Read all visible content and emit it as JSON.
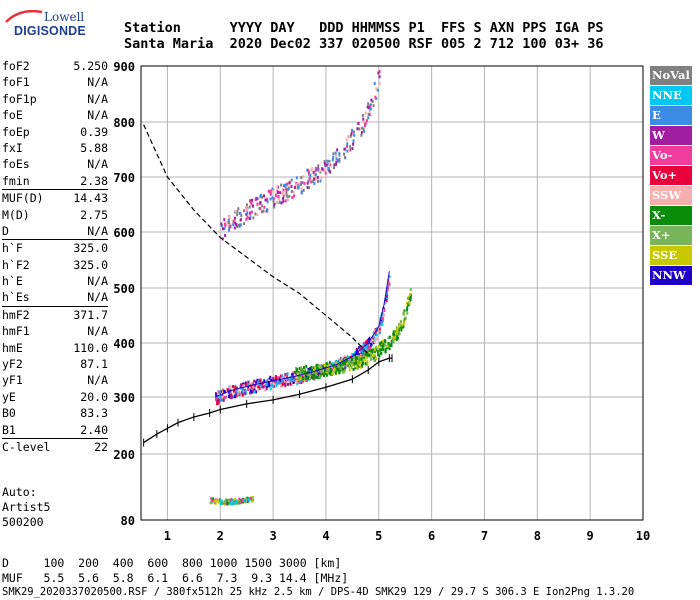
{
  "logo": {
    "line1": "Lowell",
    "line2": "DIGISONDE"
  },
  "header": {
    "labels": "Station      YYYY DAY   DDD HHMMSS P1  FFS S AXN PPS IGA PS",
    "values": "Santa Maria  2020 Dec02 337 020500 RSF 005 2 712 100 03+ 36"
  },
  "params": [
    {
      "name": "foF2",
      "value": "5.250"
    },
    {
      "name": "foF1",
      "value": "N/A"
    },
    {
      "name": "foF1p",
      "value": "N/A"
    },
    {
      "name": "foE",
      "value": "N/A"
    },
    {
      "name": "foEp",
      "value": "0.39"
    },
    {
      "name": "fxI",
      "value": "5.88"
    },
    {
      "name": "foEs",
      "value": "N/A"
    },
    {
      "name": "fmin",
      "value": "2.38"
    },
    {
      "name": "MUF(D)",
      "value": "14.43",
      "sep": true
    },
    {
      "name": "M(D)",
      "value": "2.75"
    },
    {
      "name": "D",
      "value": "N/A"
    },
    {
      "name": "h`F",
      "value": "325.0",
      "sep": true
    },
    {
      "name": "h`F2",
      "value": "325.0"
    },
    {
      "name": "h`E",
      "value": "N/A"
    },
    {
      "name": "h`Es",
      "value": "N/A"
    },
    {
      "name": "hmF2",
      "value": "371.7",
      "sep": true
    },
    {
      "name": "hmF1",
      "value": "N/A"
    },
    {
      "name": "hmE",
      "value": "110.0"
    },
    {
      "name": "yF2",
      "value": "87.1"
    },
    {
      "name": "yF1",
      "value": "N/A"
    },
    {
      "name": "yE",
      "value": "20.0"
    },
    {
      "name": "B0",
      "value": "83.3"
    },
    {
      "name": "B1",
      "value": "2.40"
    },
    {
      "name": "C-level",
      "value": "22",
      "sep": true
    }
  ],
  "auto": {
    "line1": "Auto:",
    "line2": "Artist5",
    "line3": "500200"
  },
  "legend": [
    {
      "label": "NoVal",
      "color": "#808080"
    },
    {
      "label": "NNE",
      "color": "#00c8f0"
    },
    {
      "label": "E",
      "color": "#3c8ce6"
    },
    {
      "label": "W",
      "color": "#a01ea0"
    },
    {
      "label": "Vo-",
      "color": "#f03c9b"
    },
    {
      "label": "Vo+",
      "color": "#e6003c"
    },
    {
      "label": "SSW",
      "color": "#f5afaf"
    },
    {
      "label": "X-",
      "color": "#0a8c0a"
    },
    {
      "label": "X+",
      "color": "#78b45a"
    },
    {
      "label": "SSE",
      "color": "#c8c800"
    },
    {
      "label": "NNW",
      "color": "#1e00c8"
    }
  ],
  "footer": {
    "line1": "D     100  200  400  600  800 1000 1500 3000 [km]",
    "line2": "MUF   5.5  5.6  5.8  6.1  6.6  7.3  9.3 14.4 [MHz]",
    "line3": "SMK29_2020337020500.RSF / 380fx512h 25 kHz 2.5 km / DPS-4D SMK29 129 / 29.7 S 306.3 E Ion2Png 1.3.20"
  },
  "chart_data": {
    "type": "scatter",
    "xlim": [
      0.5,
      10
    ],
    "ylim": [
      80,
      900
    ],
    "xticks": [
      "1",
      "2",
      "3",
      "4",
      "5",
      "6",
      "7",
      "8",
      "9",
      "10"
    ],
    "yticks": [
      "80",
      "200",
      "300",
      "400",
      "500",
      "600",
      "700",
      "800",
      "900"
    ],
    "grid": true,
    "series": [
      {
        "name": "O-trace",
        "color": "#e6007e",
        "x": [
          1.9,
          2.2,
          2.6,
          3.0,
          3.4,
          3.8,
          4.2,
          4.5,
          4.8,
          5.0,
          5.1,
          5.2
        ],
        "y": [
          300,
          312,
          322,
          330,
          338,
          348,
          360,
          375,
          400,
          430,
          470,
          530
        ]
      },
      {
        "name": "X-trace",
        "color": "#0a8c0a",
        "x": [
          3.4,
          3.8,
          4.2,
          4.6,
          4.9,
          5.2,
          5.4,
          5.5,
          5.6
        ],
        "y": [
          345,
          350,
          358,
          368,
          382,
          405,
          430,
          460,
          500
        ]
      },
      {
        "name": "Es-trace",
        "color": "#0a8c0a",
        "x": [
          1.8,
          2.0,
          2.2,
          2.4,
          2.6
        ],
        "y": [
          118,
          115,
          116,
          118,
          120
        ]
      },
      {
        "name": "2F-trace",
        "color": "#a01ea0",
        "x": [
          2.0,
          2.5,
          3.0,
          3.5,
          4.0,
          4.4,
          4.7,
          5.0
        ],
        "y": [
          605,
          640,
          665,
          690,
          720,
          760,
          800,
          880
        ]
      },
      {
        "name": "profile",
        "color": "#000000",
        "x": [
          0.55,
          0.8,
          1.0,
          1.2,
          1.5,
          1.8,
          2.0,
          2.5,
          3.0,
          3.5,
          4.0,
          4.5,
          4.8,
          5.0,
          5.2,
          5.25
        ],
        "y": [
          220,
          235,
          245,
          255,
          265,
          272,
          278,
          288,
          295,
          305,
          318,
          333,
          350,
          365,
          372,
          372
        ]
      },
      {
        "name": "MUF-curve",
        "color": "#000000",
        "x": [
          0.55,
          1.0,
          1.5,
          2.0,
          2.5,
          3.0,
          3.5,
          4.0,
          4.5,
          4.8
        ],
        "y": [
          795,
          700,
          640,
          590,
          555,
          520,
          490,
          450,
          410,
          380
        ]
      }
    ]
  }
}
